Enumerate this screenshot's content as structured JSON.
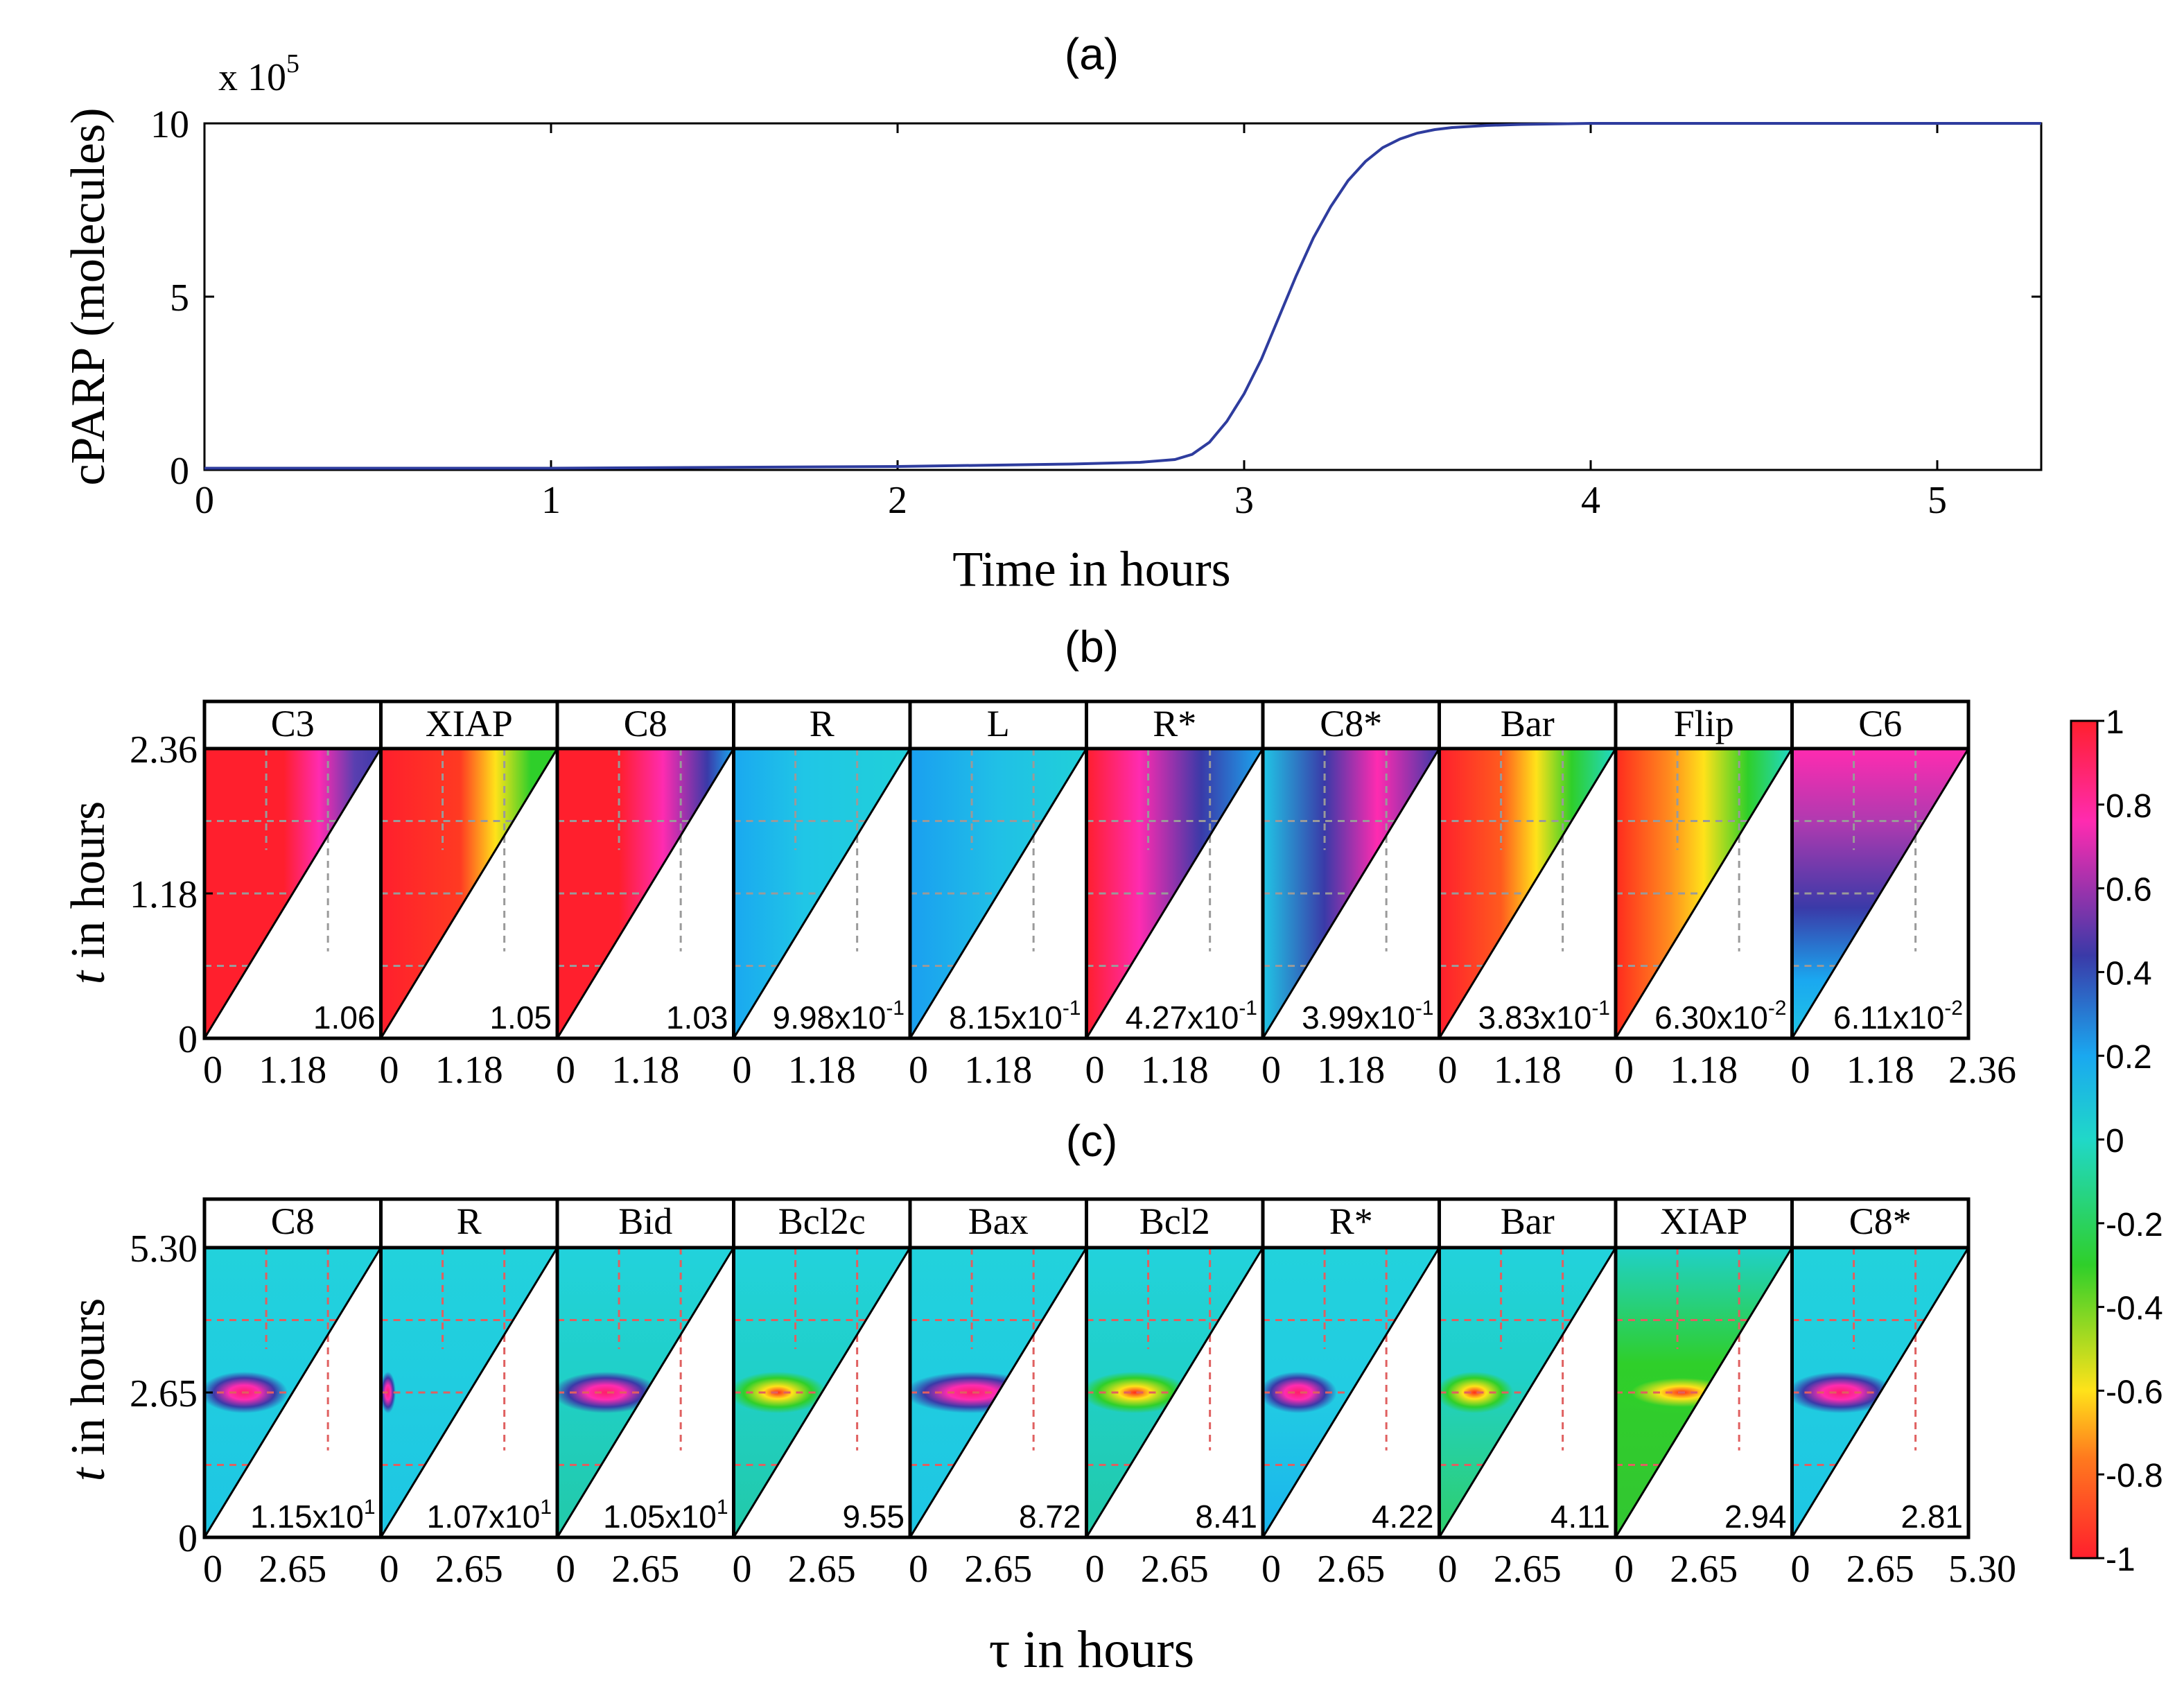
{
  "chart_data": [
    {
      "type": "line",
      "panel_label": "(a)",
      "xlabel": "Time in hours",
      "ylabel": "cPARP (molecules)",
      "y_multiplier": "x 10",
      "y_multiplier_exp": "5",
      "xlim": [
        0,
        5.3
      ],
      "ylim": [
        0,
        10
      ],
      "xticks": [
        "0",
        "1",
        "2",
        "3",
        "4",
        "5"
      ],
      "yticks": [
        "0",
        "5",
        "10"
      ],
      "series": [
        {
          "name": "cPARP",
          "color": "#2e3c9e",
          "x": [
            0,
            1,
            2,
            2.5,
            2.7,
            2.8,
            2.85,
            2.9,
            2.95,
            3.0,
            3.05,
            3.1,
            3.15,
            3.2,
            3.25,
            3.3,
            3.35,
            3.4,
            3.45,
            3.5,
            3.55,
            3.6,
            3.7,
            3.8,
            3.9,
            4.0,
            4.5,
            5.3
          ],
          "y": [
            0.05,
            0.05,
            0.1,
            0.17,
            0.22,
            0.3,
            0.45,
            0.8,
            1.4,
            2.2,
            3.2,
            4.4,
            5.6,
            6.7,
            7.6,
            8.35,
            8.9,
            9.3,
            9.55,
            9.72,
            9.82,
            9.88,
            9.94,
            9.97,
            9.985,
            10,
            10,
            10
          ]
        }
      ]
    },
    {
      "type": "heatmap",
      "panel_label": "(b)",
      "xlabel": "τ in hours",
      "ylabel": "t in hours",
      "yticks": [
        "0",
        "1.18",
        "2.36"
      ],
      "xticks": [
        "0",
        "1.18"
      ],
      "x_last_tick": "2.36",
      "tmax": 2.36,
      "panels": [
        {
          "title": "C3",
          "value": "1.06"
        },
        {
          "title": "XIAP",
          "value": "1.05"
        },
        {
          "title": "C8",
          "value": "1.03"
        },
        {
          "title": "R",
          "value": "9.98x10",
          "exp": "-1"
        },
        {
          "title": "L",
          "value": "8.15x10",
          "exp": "-1"
        },
        {
          "title": "R*",
          "value": "4.27x10",
          "exp": "-1"
        },
        {
          "title": "C8*",
          "value": "3.99x10",
          "exp": "-1"
        },
        {
          "title": "Bar",
          "value": "3.83x10",
          "exp": "-1"
        },
        {
          "title": "Flip",
          "value": "6.30x10",
          "exp": "-2"
        },
        {
          "title": "C6",
          "value": "6.11x10",
          "exp": "-2"
        }
      ]
    },
    {
      "type": "heatmap",
      "panel_label": "(c)",
      "xlabel": "τ in hours",
      "ylabel": "t in hours",
      "yticks": [
        "0",
        "2.65",
        "5.30"
      ],
      "xticks": [
        "0",
        "2.65"
      ],
      "x_last_tick": "5.30",
      "tmax": 5.3,
      "panels": [
        {
          "title": "C8",
          "value": "1.15x10",
          "exp": "1"
        },
        {
          "title": "R",
          "value": "1.07x10",
          "exp": "1"
        },
        {
          "title": "Bid",
          "value": "1.05x10",
          "exp": "1"
        },
        {
          "title": "Bcl2c",
          "value": "9.55"
        },
        {
          "title": "Bax",
          "value": "8.72"
        },
        {
          "title": "Bcl2",
          "value": "8.41"
        },
        {
          "title": "R*",
          "value": "4.22"
        },
        {
          "title": "Bar",
          "value": "4.11"
        },
        {
          "title": "XIAP",
          "value": "2.94"
        },
        {
          "title": "C8*",
          "value": "2.81"
        }
      ]
    }
  ],
  "colorbar": {
    "ticks": [
      "1",
      "0.8",
      "0.6",
      "0.4",
      "0.2",
      "0",
      "-0.2",
      "-0.4",
      "-0.6",
      "-0.8",
      "-1"
    ],
    "range": [
      -1,
      1
    ],
    "colors": [
      "#ff1f2d",
      "#ff7a1e",
      "#ffe21a",
      "#2fcf2a",
      "#20d8c8",
      "#1aa8f0",
      "#3a3aa8",
      "#ff2bb0",
      "#ff1f2d"
    ]
  }
}
